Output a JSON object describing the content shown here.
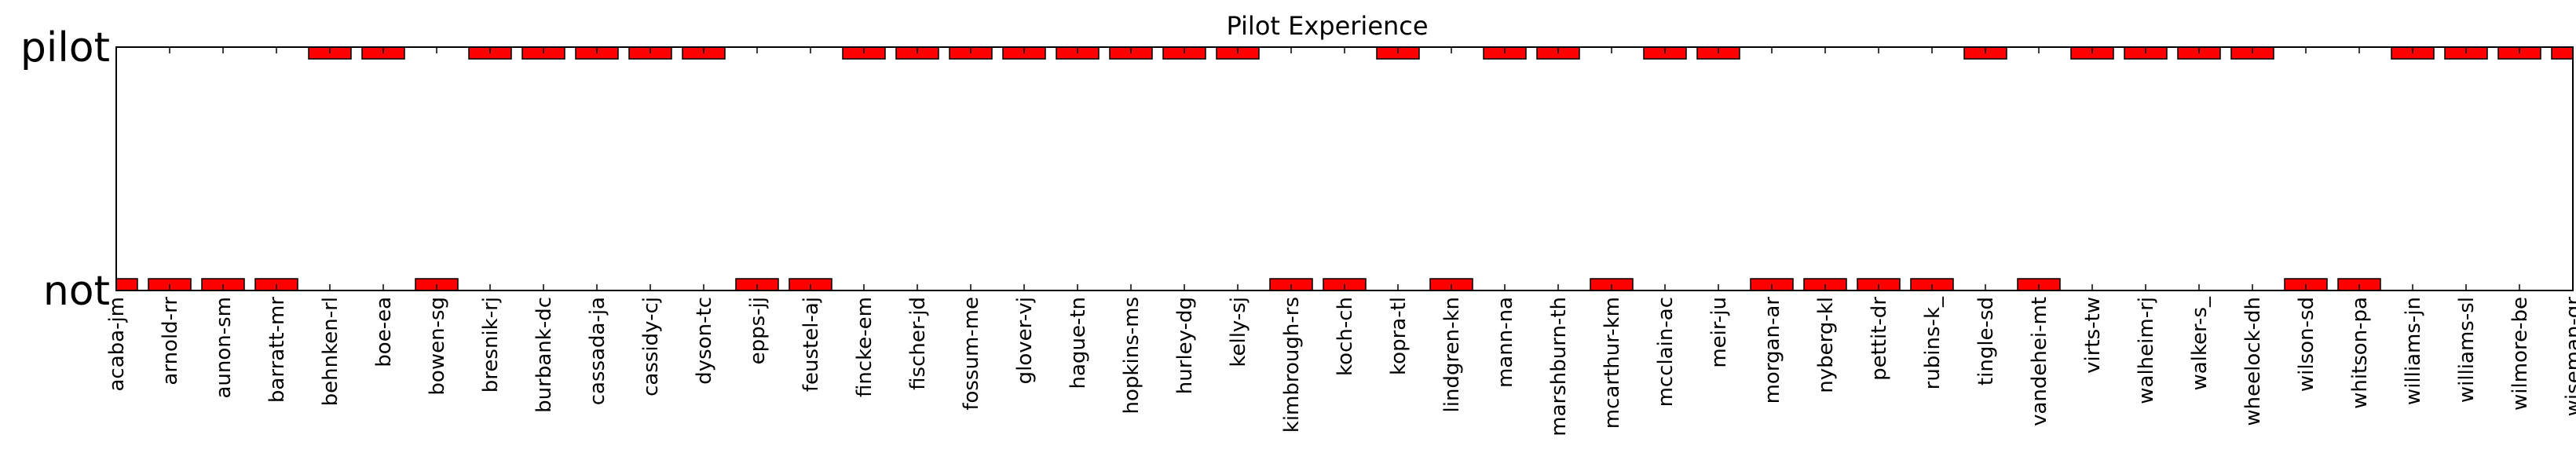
{
  "chart_data": {
    "type": "bar",
    "title": "Pilot Experience",
    "xlabel": "",
    "ylabel": "",
    "y_tick_labels": [
      "not",
      "pilot"
    ],
    "grid": false,
    "bar_color": "#ff0000",
    "categories": [
      "acaba-jm",
      "arnold-rr",
      "aunon-sm",
      "barratt-mr",
      "behnken-rl",
      "boe-ea",
      "bowen-sg",
      "bresnik-rj",
      "burbank-dc",
      "cassada-ja",
      "cassidy-cj",
      "dyson-tc",
      "epps-jj",
      "feustel-aj",
      "fincke-em",
      "fischer-jd",
      "fossum-me",
      "glover-vj",
      "hague-tn",
      "hopkins-ms",
      "hurley-dg",
      "kelly-sj",
      "kimbrough-rs",
      "koch-ch",
      "kopra-tl",
      "lindgren-kn",
      "mann-na",
      "marshburn-th",
      "mcarthur-km",
      "mcclain-ac",
      "meir-ju",
      "morgan-ar",
      "nyberg-kl",
      "pettit-dr",
      "rubins-k_",
      "tingle-sd",
      "vandehei-mt",
      "virts-tw",
      "walheim-rj",
      "walker-s_",
      "wheelock-dh",
      "wilson-sd",
      "whitson-pa",
      "williams-jn",
      "williams-sl",
      "wilmore-be",
      "wiseman-gr"
    ],
    "values": [
      "not",
      "not",
      "not",
      "not",
      "pilot",
      "pilot",
      "not",
      "pilot",
      "pilot",
      "pilot",
      "pilot",
      "pilot",
      "not",
      "not",
      "pilot",
      "pilot",
      "pilot",
      "pilot",
      "pilot",
      "pilot",
      "pilot",
      "pilot",
      "not",
      "not",
      "pilot",
      "not",
      "pilot",
      "pilot",
      "not",
      "pilot",
      "pilot",
      "not",
      "not",
      "not",
      "not",
      "pilot",
      "not",
      "pilot",
      "pilot",
      "pilot",
      "pilot",
      "not",
      "not",
      "pilot",
      "pilot",
      "pilot",
      "pilot"
    ]
  }
}
